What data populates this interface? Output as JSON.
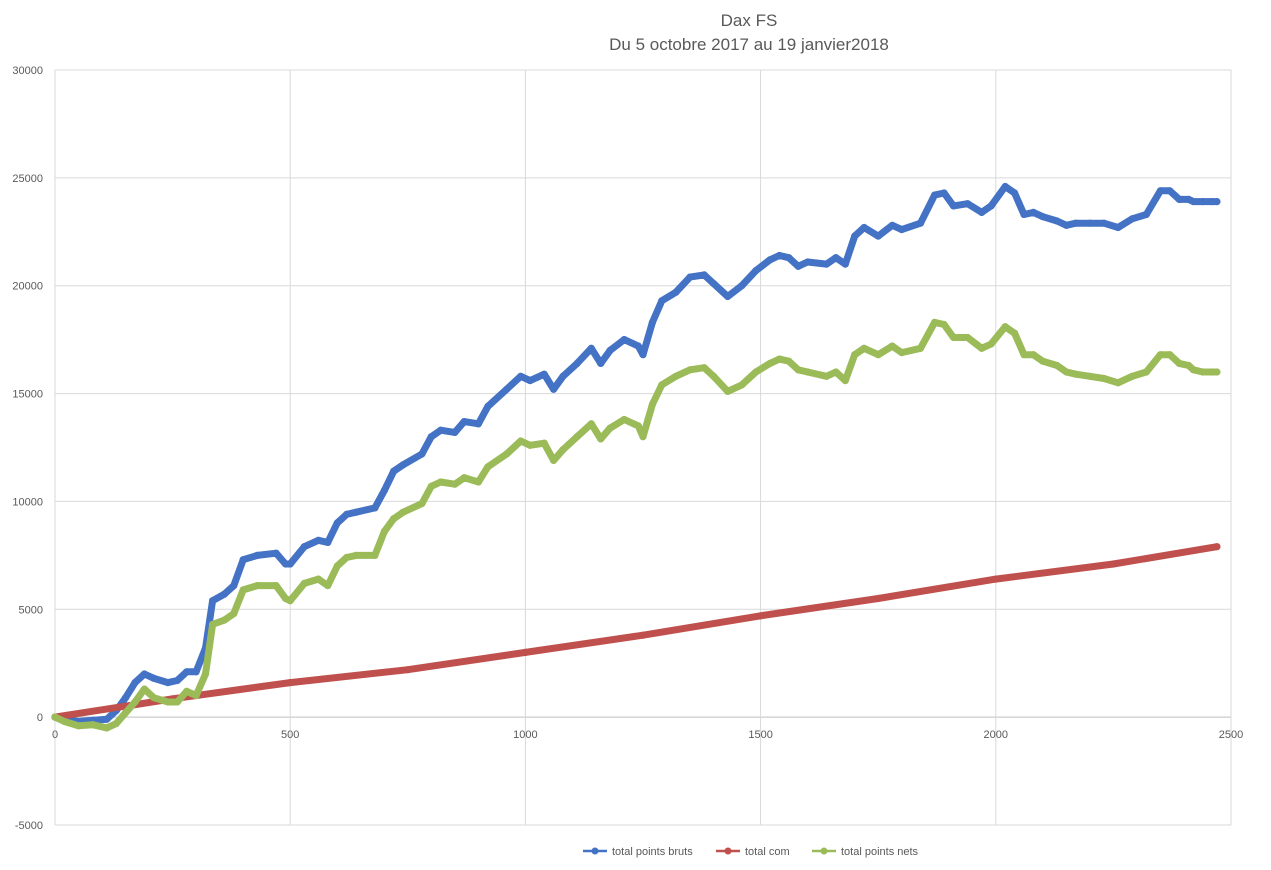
{
  "chart_data": {
    "type": "line",
    "title": "Dax FS",
    "subtitle": "Du 5 octobre 2017 au 19 janvier2018",
    "xlabel": "",
    "ylabel": "",
    "xlim": [
      0,
      2500
    ],
    "ylim": [
      -5000,
      30000
    ],
    "x_ticks": [
      0,
      500,
      1000,
      1500,
      2000,
      2500
    ],
    "y_ticks": [
      -5000,
      0,
      5000,
      10000,
      15000,
      20000,
      25000,
      30000
    ],
    "grid": true,
    "legend_position": "bottom",
    "series": [
      {
        "name": "total points bruts",
        "color": "#4472c4",
        "points": [
          [
            0,
            0
          ],
          [
            20,
            -100
          ],
          [
            50,
            -200
          ],
          [
            80,
            -150
          ],
          [
            110,
            -100
          ],
          [
            130,
            300
          ],
          [
            150,
            900
          ],
          [
            170,
            1600
          ],
          [
            190,
            2000
          ],
          [
            210,
            1800
          ],
          [
            240,
            1600
          ],
          [
            260,
            1700
          ],
          [
            280,
            2100
          ],
          [
            300,
            2100
          ],
          [
            320,
            3200
          ],
          [
            335,
            5400
          ],
          [
            360,
            5700
          ],
          [
            380,
            6100
          ],
          [
            400,
            7300
          ],
          [
            430,
            7500
          ],
          [
            470,
            7600
          ],
          [
            490,
            7100
          ],
          [
            500,
            7100
          ],
          [
            530,
            7900
          ],
          [
            560,
            8200
          ],
          [
            580,
            8100
          ],
          [
            600,
            9000
          ],
          [
            620,
            9400
          ],
          [
            640,
            9500
          ],
          [
            680,
            9700
          ],
          [
            700,
            10500
          ],
          [
            720,
            11400
          ],
          [
            740,
            11700
          ],
          [
            780,
            12200
          ],
          [
            800,
            13000
          ],
          [
            820,
            13300
          ],
          [
            850,
            13200
          ],
          [
            870,
            13700
          ],
          [
            900,
            13600
          ],
          [
            920,
            14400
          ],
          [
            960,
            15200
          ],
          [
            990,
            15800
          ],
          [
            1010,
            15600
          ],
          [
            1040,
            15900
          ],
          [
            1060,
            15200
          ],
          [
            1080,
            15800
          ],
          [
            1110,
            16400
          ],
          [
            1140,
            17100
          ],
          [
            1160,
            16400
          ],
          [
            1180,
            17000
          ],
          [
            1210,
            17500
          ],
          [
            1240,
            17200
          ],
          [
            1250,
            16800
          ],
          [
            1270,
            18300
          ],
          [
            1290,
            19300
          ],
          [
            1320,
            19700
          ],
          [
            1350,
            20400
          ],
          [
            1380,
            20500
          ],
          [
            1400,
            20100
          ],
          [
            1430,
            19500
          ],
          [
            1460,
            20000
          ],
          [
            1490,
            20700
          ],
          [
            1520,
            21200
          ],
          [
            1540,
            21400
          ],
          [
            1560,
            21300
          ],
          [
            1580,
            20900
          ],
          [
            1600,
            21100
          ],
          [
            1640,
            21000
          ],
          [
            1660,
            21300
          ],
          [
            1680,
            21000
          ],
          [
            1700,
            22300
          ],
          [
            1720,
            22700
          ],
          [
            1750,
            22300
          ],
          [
            1780,
            22800
          ],
          [
            1800,
            22600
          ],
          [
            1840,
            22900
          ],
          [
            1870,
            24200
          ],
          [
            1890,
            24300
          ],
          [
            1910,
            23700
          ],
          [
            1940,
            23800
          ],
          [
            1970,
            23400
          ],
          [
            1990,
            23700
          ],
          [
            2020,
            24600
          ],
          [
            2040,
            24300
          ],
          [
            2060,
            23300
          ],
          [
            2080,
            23400
          ],
          [
            2100,
            23200
          ],
          [
            2130,
            23000
          ],
          [
            2150,
            22800
          ],
          [
            2170,
            22900
          ],
          [
            2200,
            22900
          ],
          [
            2230,
            22900
          ],
          [
            2260,
            22700
          ],
          [
            2290,
            23100
          ],
          [
            2320,
            23300
          ],
          [
            2350,
            24400
          ],
          [
            2370,
            24400
          ],
          [
            2390,
            24000
          ],
          [
            2410,
            24000
          ],
          [
            2420,
            23900
          ],
          [
            2440,
            23900
          ],
          [
            2460,
            23900
          ],
          [
            2470,
            23900
          ]
        ]
      },
      {
        "name": "total com",
        "color": "#c0504d",
        "points": [
          [
            0,
            0
          ],
          [
            250,
            850
          ],
          [
            500,
            1600
          ],
          [
            750,
            2200
          ],
          [
            1000,
            3000
          ],
          [
            1250,
            3800
          ],
          [
            1500,
            4700
          ],
          [
            1750,
            5500
          ],
          [
            2000,
            6400
          ],
          [
            2250,
            7100
          ],
          [
            2470,
            7900
          ]
        ]
      },
      {
        "name": "total points nets",
        "color": "#9bbb59",
        "points": [
          [
            0,
            0
          ],
          [
            20,
            -200
          ],
          [
            50,
            -400
          ],
          [
            80,
            -350
          ],
          [
            110,
            -500
          ],
          [
            130,
            -300
          ],
          [
            150,
            200
          ],
          [
            170,
            700
          ],
          [
            190,
            1300
          ],
          [
            210,
            900
          ],
          [
            240,
            700
          ],
          [
            260,
            700
          ],
          [
            280,
            1200
          ],
          [
            300,
            1000
          ],
          [
            320,
            2000
          ],
          [
            335,
            4300
          ],
          [
            360,
            4500
          ],
          [
            380,
            4800
          ],
          [
            400,
            5900
          ],
          [
            430,
            6100
          ],
          [
            470,
            6100
          ],
          [
            490,
            5500
          ],
          [
            500,
            5400
          ],
          [
            530,
            6200
          ],
          [
            560,
            6400
          ],
          [
            580,
            6100
          ],
          [
            600,
            7000
          ],
          [
            620,
            7400
          ],
          [
            640,
            7500
          ],
          [
            680,
            7500
          ],
          [
            700,
            8600
          ],
          [
            720,
            9200
          ],
          [
            740,
            9500
          ],
          [
            780,
            9900
          ],
          [
            800,
            10700
          ],
          [
            820,
            10900
          ],
          [
            850,
            10800
          ],
          [
            870,
            11100
          ],
          [
            900,
            10900
          ],
          [
            920,
            11600
          ],
          [
            960,
            12200
          ],
          [
            990,
            12800
          ],
          [
            1010,
            12600
          ],
          [
            1040,
            12700
          ],
          [
            1060,
            11900
          ],
          [
            1080,
            12400
          ],
          [
            1110,
            13000
          ],
          [
            1140,
            13600
          ],
          [
            1160,
            12900
          ],
          [
            1180,
            13400
          ],
          [
            1210,
            13800
          ],
          [
            1240,
            13500
          ],
          [
            1250,
            13000
          ],
          [
            1270,
            14500
          ],
          [
            1290,
            15400
          ],
          [
            1320,
            15800
          ],
          [
            1350,
            16100
          ],
          [
            1380,
            16200
          ],
          [
            1400,
            15800
          ],
          [
            1430,
            15100
          ],
          [
            1460,
            15400
          ],
          [
            1490,
            16000
          ],
          [
            1520,
            16400
          ],
          [
            1540,
            16600
          ],
          [
            1560,
            16500
          ],
          [
            1580,
            16100
          ],
          [
            1600,
            16000
          ],
          [
            1640,
            15800
          ],
          [
            1660,
            16000
          ],
          [
            1680,
            15600
          ],
          [
            1700,
            16800
          ],
          [
            1720,
            17100
          ],
          [
            1750,
            16800
          ],
          [
            1780,
            17200
          ],
          [
            1800,
            16900
          ],
          [
            1840,
            17100
          ],
          [
            1870,
            18300
          ],
          [
            1890,
            18200
          ],
          [
            1910,
            17600
          ],
          [
            1940,
            17600
          ],
          [
            1970,
            17100
          ],
          [
            1990,
            17300
          ],
          [
            2020,
            18100
          ],
          [
            2040,
            17800
          ],
          [
            2060,
            16800
          ],
          [
            2080,
            16800
          ],
          [
            2100,
            16500
          ],
          [
            2130,
            16300
          ],
          [
            2150,
            16000
          ],
          [
            2170,
            15900
          ],
          [
            2200,
            15800
          ],
          [
            2230,
            15700
          ],
          [
            2260,
            15500
          ],
          [
            2290,
            15800
          ],
          [
            2320,
            16000
          ],
          [
            2350,
            16800
          ],
          [
            2370,
            16800
          ],
          [
            2390,
            16400
          ],
          [
            2410,
            16300
          ],
          [
            2420,
            16100
          ],
          [
            2440,
            16000
          ],
          [
            2460,
            16000
          ],
          [
            2470,
            16000
          ]
        ]
      }
    ]
  }
}
